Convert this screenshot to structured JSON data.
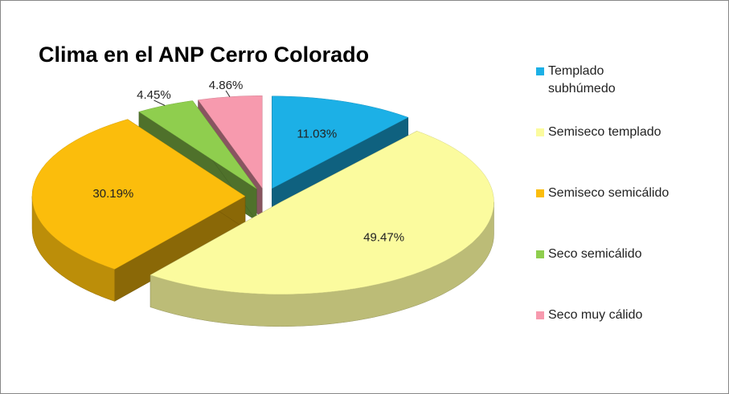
{
  "chart_data": {
    "type": "pie3d",
    "title": "Clima en el ANP Cerro Colorado",
    "categories": [
      "Templado subhúmedo",
      "Semiseco templado",
      "Semiseco semicálido",
      "Seco semicálido",
      "Seco muy cálido"
    ],
    "values": [
      11.03,
      49.47,
      30.19,
      4.45,
      4.86
    ],
    "value_labels": [
      "11.03%",
      "49.47%",
      "30.19%",
      "4.45%",
      "4.86%"
    ],
    "colors": [
      "#1cb0e6",
      "#fbfb9e",
      "#fbbd0c",
      "#8fce4e",
      "#f79aae"
    ],
    "legend": "right"
  }
}
